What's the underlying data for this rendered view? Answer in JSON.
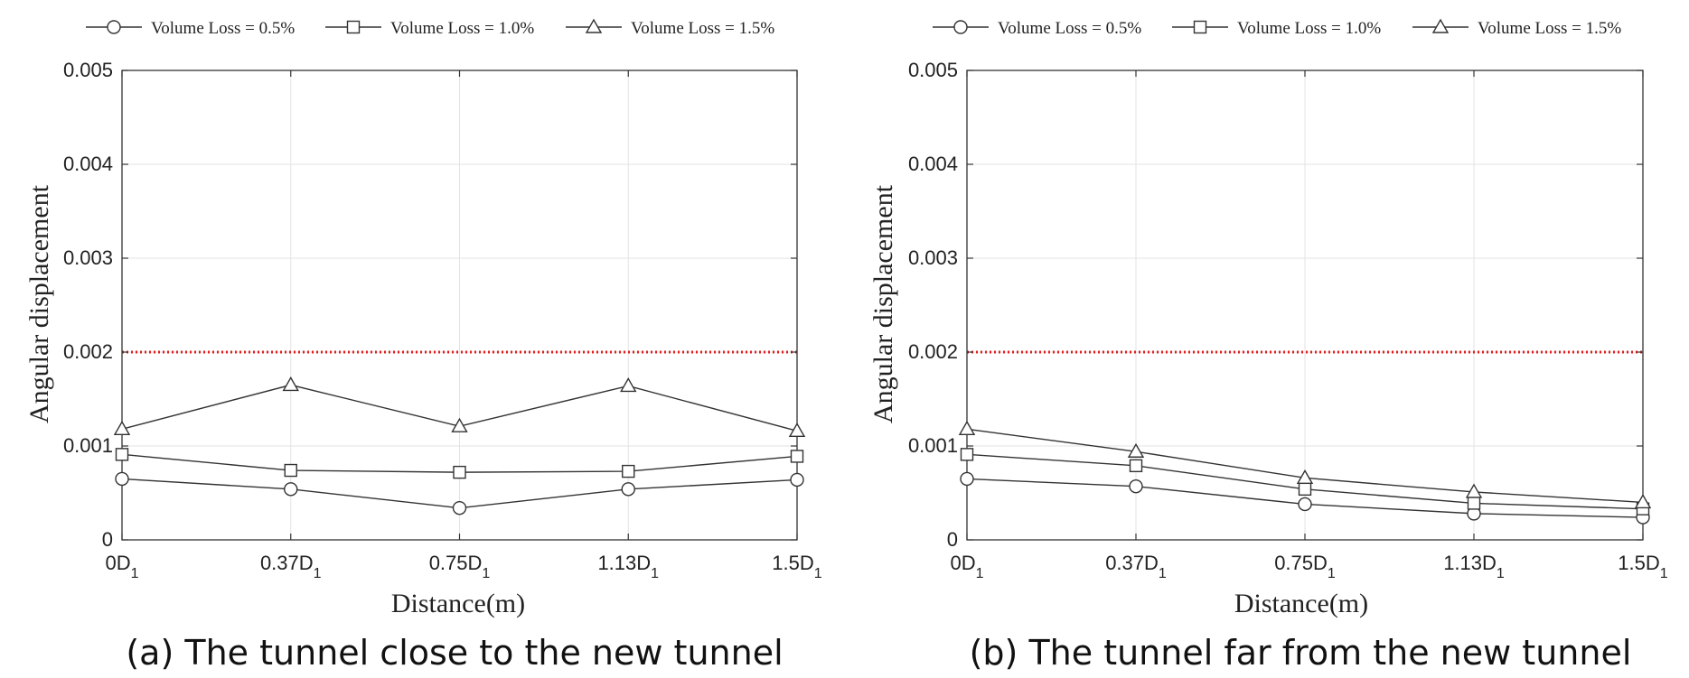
{
  "chart_data": [
    {
      "type": "line",
      "caption": "(a) The tunnel close to the new tunnel",
      "xlabel": "Distance(m)",
      "ylabel": "Angular displacement",
      "categories": [
        "0D1",
        "0.37D1",
        "0.75D1",
        "1.13D1",
        "1.5D1"
      ],
      "tick_labels": [
        {
          "main": "0D",
          "sub": "1"
        },
        {
          "main": "0.37D",
          "sub": "1"
        },
        {
          "main": "0.75D",
          "sub": "1"
        },
        {
          "main": "1.13D",
          "sub": "1"
        },
        {
          "main": "1.5D",
          "sub": "1"
        }
      ],
      "ylim": [
        0,
        0.005
      ],
      "yticks": [
        "0",
        "0.001",
        "0.002",
        "0.003",
        "0.004",
        "0.005"
      ],
      "grid": true,
      "legend_position": "top",
      "reference_line": {
        "value": 0.002,
        "color": "#e02020",
        "style": "dotted"
      },
      "series": [
        {
          "name": "Volume Loss = 0.5%",
          "marker": "circle",
          "values": [
            0.00065,
            0.00054,
            0.00034,
            0.00054,
            0.00064
          ]
        },
        {
          "name": "Volume Loss = 1.0%",
          "marker": "square",
          "values": [
            0.00091,
            0.00074,
            0.00072,
            0.00073,
            0.00089
          ]
        },
        {
          "name": "Volume Loss = 1.5%",
          "marker": "triangle",
          "values": [
            0.00118,
            0.00165,
            0.00121,
            0.00164,
            0.00116
          ]
        }
      ]
    },
    {
      "type": "line",
      "caption": "(b) The tunnel far from the new tunnel",
      "xlabel": "Distance(m)",
      "ylabel": "Angular displacement",
      "categories": [
        "0D1",
        "0.37D1",
        "0.75D1",
        "1.13D1",
        "1.5D1"
      ],
      "tick_labels": [
        {
          "main": "0D",
          "sub": "1"
        },
        {
          "main": "0.37D",
          "sub": "1"
        },
        {
          "main": "0.75D",
          "sub": "1"
        },
        {
          "main": "1.13D",
          "sub": "1"
        },
        {
          "main": "1.5D",
          "sub": "1"
        }
      ],
      "ylim": [
        0,
        0.005
      ],
      "yticks": [
        "0",
        "0.001",
        "0.002",
        "0.003",
        "0.004",
        "0.005"
      ],
      "grid": true,
      "legend_position": "top",
      "reference_line": {
        "value": 0.002,
        "color": "#e02020",
        "style": "dotted"
      },
      "series": [
        {
          "name": "Volume Loss = 0.5%",
          "marker": "circle",
          "values": [
            0.00065,
            0.00057,
            0.00038,
            0.00028,
            0.00024
          ]
        },
        {
          "name": "Volume Loss = 1.0%",
          "marker": "square",
          "values": [
            0.00091,
            0.00079,
            0.00054,
            0.00039,
            0.00033
          ]
        },
        {
          "name": "Volume Loss = 1.5%",
          "marker": "triangle",
          "values": [
            0.00118,
            0.00094,
            0.00066,
            0.00051,
            0.0004
          ]
        }
      ]
    }
  ],
  "colors": {
    "line": "#333333",
    "grid": "#e3e3e3",
    "axis": "#333333",
    "reference": "#e02020"
  }
}
